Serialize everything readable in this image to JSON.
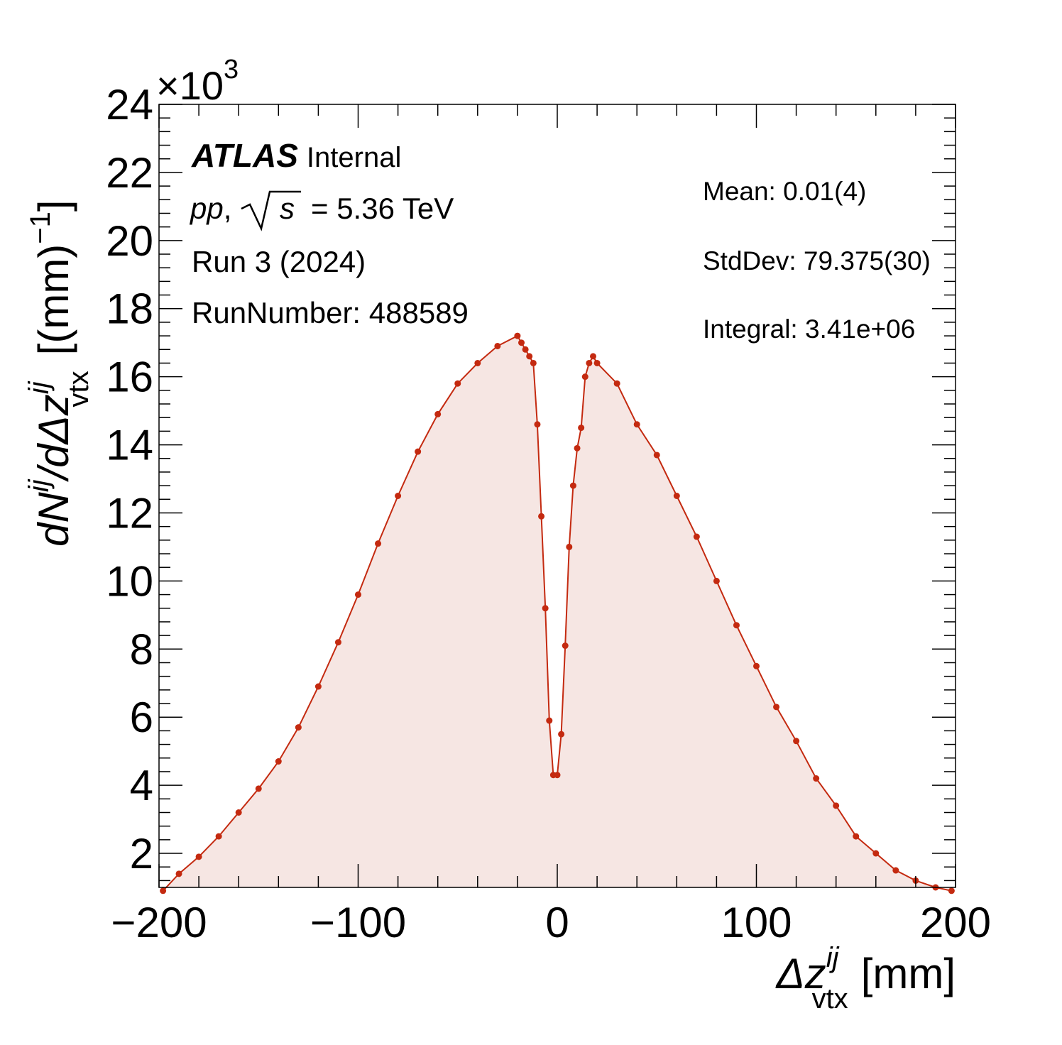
{
  "chart_data": {
    "type": "line",
    "style": "histogram-markers-with-filled-area",
    "xlabel": {
      "main": "Δz",
      "sup": "ij",
      "sub": "vtx",
      "unit": "[mm]"
    },
    "ylabel": {
      "text": "dN^{ij}/dΔz^{ij}_{vtx} [(mm)^{-1}]",
      "numerator": "dN",
      "numerator_sup": "ij",
      "denominator": "/dΔz",
      "denominator_sup": "ij",
      "denominator_sub": "vtx",
      "unit_open": "[(mm)",
      "unit_exp": "−1",
      "unit_close": "]"
    },
    "y_multiplier": {
      "base": "×10",
      "exp": "3"
    },
    "xlim": [
      -200,
      200
    ],
    "ylim": [
      1.0,
      24.0
    ],
    "x_ticks": [
      -200,
      -100,
      0,
      100,
      200
    ],
    "x_tick_labels": [
      "−200",
      "−100",
      "0",
      "100",
      "200"
    ],
    "y_ticks": [
      2,
      4,
      6,
      8,
      10,
      12,
      14,
      16,
      18,
      20,
      22,
      24
    ],
    "y_tick_labels": [
      "2",
      "4",
      "6",
      "8",
      "10",
      "12",
      "14",
      "16",
      "18",
      "20",
      "22",
      "24"
    ],
    "grid": false,
    "line_color": "#c42a10",
    "fill_color": "#f6e6e3",
    "series": [
      {
        "x": [
          -198,
          -190,
          -180,
          -170,
          -160,
          -150,
          -140,
          -130,
          -120,
          -110,
          -100,
          -90,
          -80,
          -70,
          -60,
          -50,
          -40,
          -30,
          -20,
          -18,
          -16,
          -14,
          -12,
          -10,
          -8,
          -6,
          -4,
          -2,
          0,
          2,
          4,
          6,
          8,
          10,
          12,
          14,
          16,
          18,
          20,
          30,
          40,
          50,
          60,
          70,
          80,
          90,
          100,
          110,
          120,
          130,
          140,
          150,
          160,
          170,
          180,
          190,
          198
        ],
        "y": [
          0.9,
          1.4,
          1.9,
          2.5,
          3.2,
          3.9,
          4.7,
          5.7,
          6.9,
          8.2,
          9.6,
          11.1,
          12.5,
          13.8,
          14.9,
          15.8,
          16.4,
          16.9,
          17.2,
          17.0,
          16.8,
          16.6,
          16.4,
          14.6,
          11.9,
          9.2,
          5.9,
          4.3,
          4.3,
          5.5,
          8.1,
          11.0,
          12.8,
          13.9,
          14.5,
          16.0,
          16.4,
          16.6,
          16.4,
          15.8,
          14.6,
          13.7,
          12.5,
          11.3,
          10.0,
          8.7,
          7.5,
          6.3,
          5.3,
          4.2,
          3.4,
          2.5,
          2.0,
          1.5,
          1.2,
          1.0,
          0.9
        ]
      }
    ]
  },
  "annotations": {
    "atlas": "ATLAS",
    "internal": "Internal",
    "energy_pp": "pp",
    "energy_comma": ",",
    "energy_s": "s",
    "energy_rest": "= 5.36 TeV",
    "run": "Run 3 (2024)",
    "run_number": "RunNumber: 488589",
    "mean": "Mean: 0.01(4)",
    "stddev": "StdDev: 79.375(30)",
    "integral": "Integral: 3.41e+06"
  }
}
